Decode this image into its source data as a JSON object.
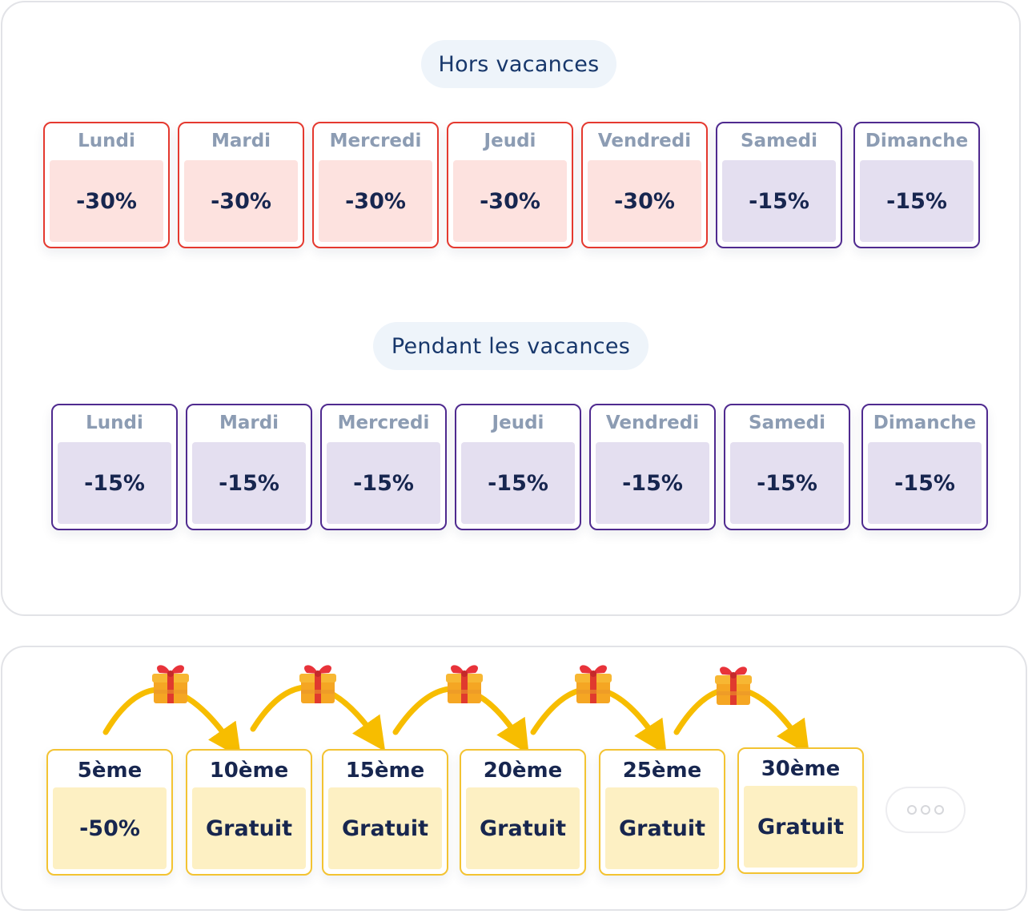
{
  "off_season": {
    "title": "Hors vacances",
    "days": [
      {
        "name": "Lundi",
        "value": "-30%",
        "accent": "red"
      },
      {
        "name": "Mardi",
        "value": "-30%",
        "accent": "red"
      },
      {
        "name": "Mercredi",
        "value": "-30%",
        "accent": "red"
      },
      {
        "name": "Jeudi",
        "value": "-30%",
        "accent": "red"
      },
      {
        "name": "Vendredi",
        "value": "-30%",
        "accent": "red"
      },
      {
        "name": "Samedi",
        "value": "-15%",
        "accent": "purple"
      },
      {
        "name": "Dimanche",
        "value": "-15%",
        "accent": "purple"
      }
    ]
  },
  "holidays": {
    "title": "Pendant les vacances",
    "days": [
      {
        "name": "Lundi",
        "value": "-15%",
        "accent": "purple"
      },
      {
        "name": "Mardi",
        "value": "-15%",
        "accent": "purple"
      },
      {
        "name": "Mercredi",
        "value": "-15%",
        "accent": "purple"
      },
      {
        "name": "Jeudi",
        "value": "-15%",
        "accent": "purple"
      },
      {
        "name": "Vendredi",
        "value": "-15%",
        "accent": "purple"
      },
      {
        "name": "Samedi",
        "value": "-15%",
        "accent": "purple"
      },
      {
        "name": "Dimanche",
        "value": "-15%",
        "accent": "purple"
      }
    ]
  },
  "loyalty": {
    "steps": [
      {
        "label": "5ème",
        "value": "-50%"
      },
      {
        "label": "10ème",
        "value": "Gratuit"
      },
      {
        "label": "15ème",
        "value": "Gratuit"
      },
      {
        "label": "20ème",
        "value": "Gratuit"
      },
      {
        "label": "25ème",
        "value": "Gratuit"
      },
      {
        "label": "30ème",
        "value": "Gratuit"
      }
    ],
    "connector_icon": "gift-icon",
    "more_icon": "more-dots-icon"
  },
  "colors": {
    "red_accent": "#e5392f",
    "purple_accent": "#4f2a8f",
    "yellow_accent": "#f3c332",
    "arrow": "#f7bd00",
    "text_dark": "#17264f",
    "text_muted": "#8c9cb3"
  }
}
